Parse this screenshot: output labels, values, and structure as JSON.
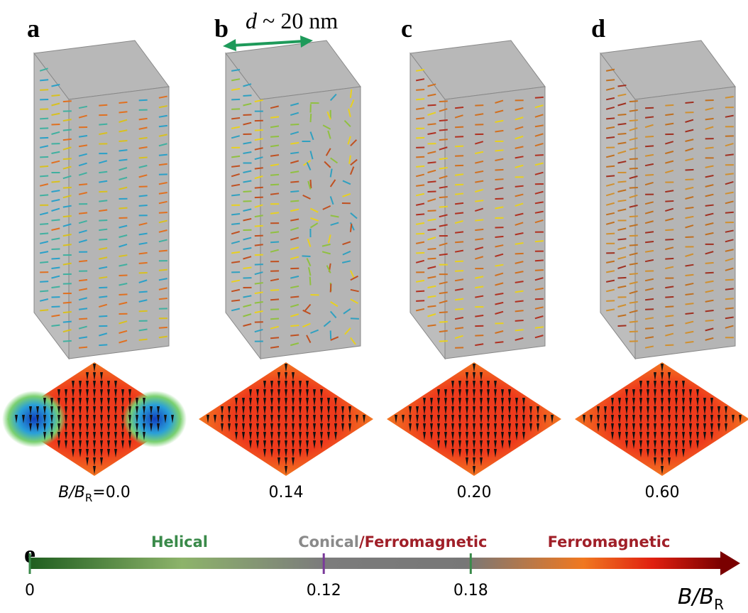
{
  "panels": [
    {
      "label": "a",
      "caption": "0.0"
    },
    {
      "label": "b",
      "caption": "0.14"
    },
    {
      "label": "c",
      "caption": "0.20"
    },
    {
      "label": "d",
      "caption": "0.60"
    }
  ],
  "field_symbol": {
    "main": "B/B",
    "sub": "R",
    "equals": "="
  },
  "dimension": {
    "symbol": "d",
    "text": "~ 20 nm"
  },
  "phase_diagram": {
    "label": "e",
    "xlim": [
      0,
      0.29
    ],
    "xticks": [
      0,
      0.12,
      0.18
    ],
    "tick_colors": [
      "#3a8a4a",
      "#7a3a9a",
      "#3a8a4a"
    ],
    "regions": [
      "Helical",
      "Conical",
      "/Ferromagnetic",
      "Ferromagnetic"
    ]
  }
}
